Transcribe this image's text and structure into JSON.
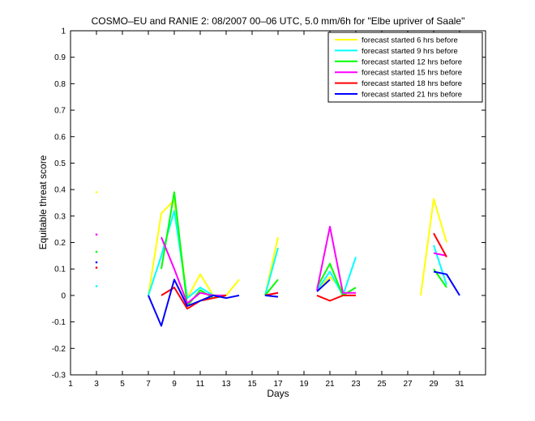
{
  "chart_data": {
    "type": "line",
    "title": "COSMO–EU and RANIE 2: 08/2007 00–06 UTC, 5.0 mm/6h for \"Elbe upriver of Saale\"",
    "xlabel": "Days",
    "ylabel": "Equitable threat score",
    "xlim": [
      1,
      33
    ],
    "ylim": [
      -0.3,
      1
    ],
    "xticks": [
      1,
      3,
      5,
      7,
      9,
      11,
      13,
      15,
      17,
      19,
      21,
      23,
      25,
      27,
      29,
      31
    ],
    "yticks": [
      -0.3,
      -0.2,
      -0.1,
      0,
      0.1,
      0.2,
      0.3,
      0.4,
      0.5,
      0.6,
      0.7,
      0.8,
      0.9,
      1
    ],
    "legend_position": "top-right",
    "grid": false,
    "series": [
      {
        "name": "forecast started 6 hrs before",
        "color": "#ffff00",
        "segments": [
          [
            [
              3,
              0.39
            ]
          ],
          [
            [
              7,
              0.0
            ],
            [
              8,
              0.31
            ],
            [
              9,
              0.36
            ],
            [
              10,
              -0.01
            ],
            [
              11,
              0.08
            ],
            [
              12,
              0.0
            ],
            [
              13,
              0.0
            ],
            [
              14,
              0.06
            ]
          ],
          [
            [
              16,
              0.0
            ],
            [
              17,
              0.22
            ]
          ],
          [
            [
              20,
              0.02
            ],
            [
              21,
              0.07
            ],
            [
              22,
              0.02
            ]
          ],
          [
            [
              28,
              0.0
            ],
            [
              29,
              0.365
            ],
            [
              30,
              0.2
            ]
          ]
        ]
      },
      {
        "name": "forecast started 9 hrs before",
        "color": "#00ffff",
        "segments": [
          [
            [
              3,
              0.035
            ]
          ],
          [
            [
              7,
              0.0
            ],
            [
              8,
              0.15
            ],
            [
              9,
              0.32
            ],
            [
              10,
              -0.01
            ],
            [
              11,
              0.03
            ],
            [
              12,
              0.0
            ],
            [
              13,
              0.0
            ]
          ],
          [
            [
              16,
              0.0
            ],
            [
              17,
              0.18
            ]
          ],
          [
            [
              20,
              0.02
            ],
            [
              21,
              0.09
            ],
            [
              22,
              0.0
            ],
            [
              23,
              0.145
            ]
          ],
          [
            [
              29,
              0.19
            ],
            [
              30,
              0.04
            ]
          ]
        ]
      },
      {
        "name": "forecast started 12 hrs before",
        "color": "#00ff00",
        "segments": [
          [
            [
              3,
              0.165
            ]
          ],
          [
            [
              8,
              0.1
            ],
            [
              9,
              0.39
            ],
            [
              10,
              -0.04
            ],
            [
              11,
              0.02
            ],
            [
              12,
              -0.01
            ],
            [
              13,
              0.0
            ]
          ],
          [
            [
              16,
              0.0
            ],
            [
              17,
              0.06
            ]
          ],
          [
            [
              20,
              0.03
            ],
            [
              21,
              0.12
            ],
            [
              22,
              0.0
            ],
            [
              23,
              0.03
            ]
          ],
          [
            [
              29,
              0.1
            ],
            [
              30,
              0.03
            ]
          ]
        ]
      },
      {
        "name": "forecast started 15 hrs before",
        "color": "#ff00ff",
        "segments": [
          [
            [
              3,
              0.23
            ]
          ],
          [
            [
              8,
              0.22
            ],
            [
              9,
              0.1
            ],
            [
              10,
              -0.03
            ],
            [
              11,
              0.01
            ],
            [
              12,
              0.0
            ],
            [
              13,
              0.0
            ]
          ],
          [
            [
              16,
              0.0
            ],
            [
              17,
              0.01
            ]
          ],
          [
            [
              20,
              0.02
            ],
            [
              21,
              0.26
            ],
            [
              22,
              0.01
            ],
            [
              23,
              0.01
            ]
          ],
          [
            [
              29,
              0.16
            ],
            [
              30,
              0.15
            ]
          ]
        ]
      },
      {
        "name": "forecast started 18 hrs before",
        "color": "#ff0000",
        "segments": [
          [
            [
              3,
              0.105
            ]
          ],
          [
            [
              8,
              0.0
            ],
            [
              9,
              0.03
            ],
            [
              10,
              -0.05
            ],
            [
              11,
              -0.02
            ],
            [
              12,
              -0.01
            ],
            [
              13,
              0.0
            ]
          ],
          [
            [
              16,
              0.0
            ],
            [
              17,
              0.01
            ]
          ],
          [
            [
              20,
              0.0
            ],
            [
              21,
              -0.02
            ],
            [
              22,
              0.0
            ],
            [
              23,
              0.0
            ]
          ],
          [
            [
              29,
              0.235
            ],
            [
              30,
              0.145
            ]
          ]
        ]
      },
      {
        "name": "forecast started 21 hrs before",
        "color": "#0000ff",
        "segments": [
          [
            [
              3,
              0.125
            ]
          ],
          [
            [
              7,
              0.0
            ],
            [
              8,
              -0.115
            ],
            [
              9,
              0.06
            ],
            [
              10,
              -0.04
            ],
            [
              11,
              -0.02
            ],
            [
              12,
              0.0
            ],
            [
              13,
              -0.01
            ],
            [
              14,
              0.0
            ]
          ],
          [
            [
              16,
              0.0
            ],
            [
              17,
              -0.005
            ]
          ],
          [
            [
              20,
              0.015
            ],
            [
              21,
              0.06
            ]
          ],
          [
            [
              29,
              0.09
            ],
            [
              30,
              0.08
            ],
            [
              31,
              0.0
            ]
          ]
        ]
      }
    ]
  }
}
